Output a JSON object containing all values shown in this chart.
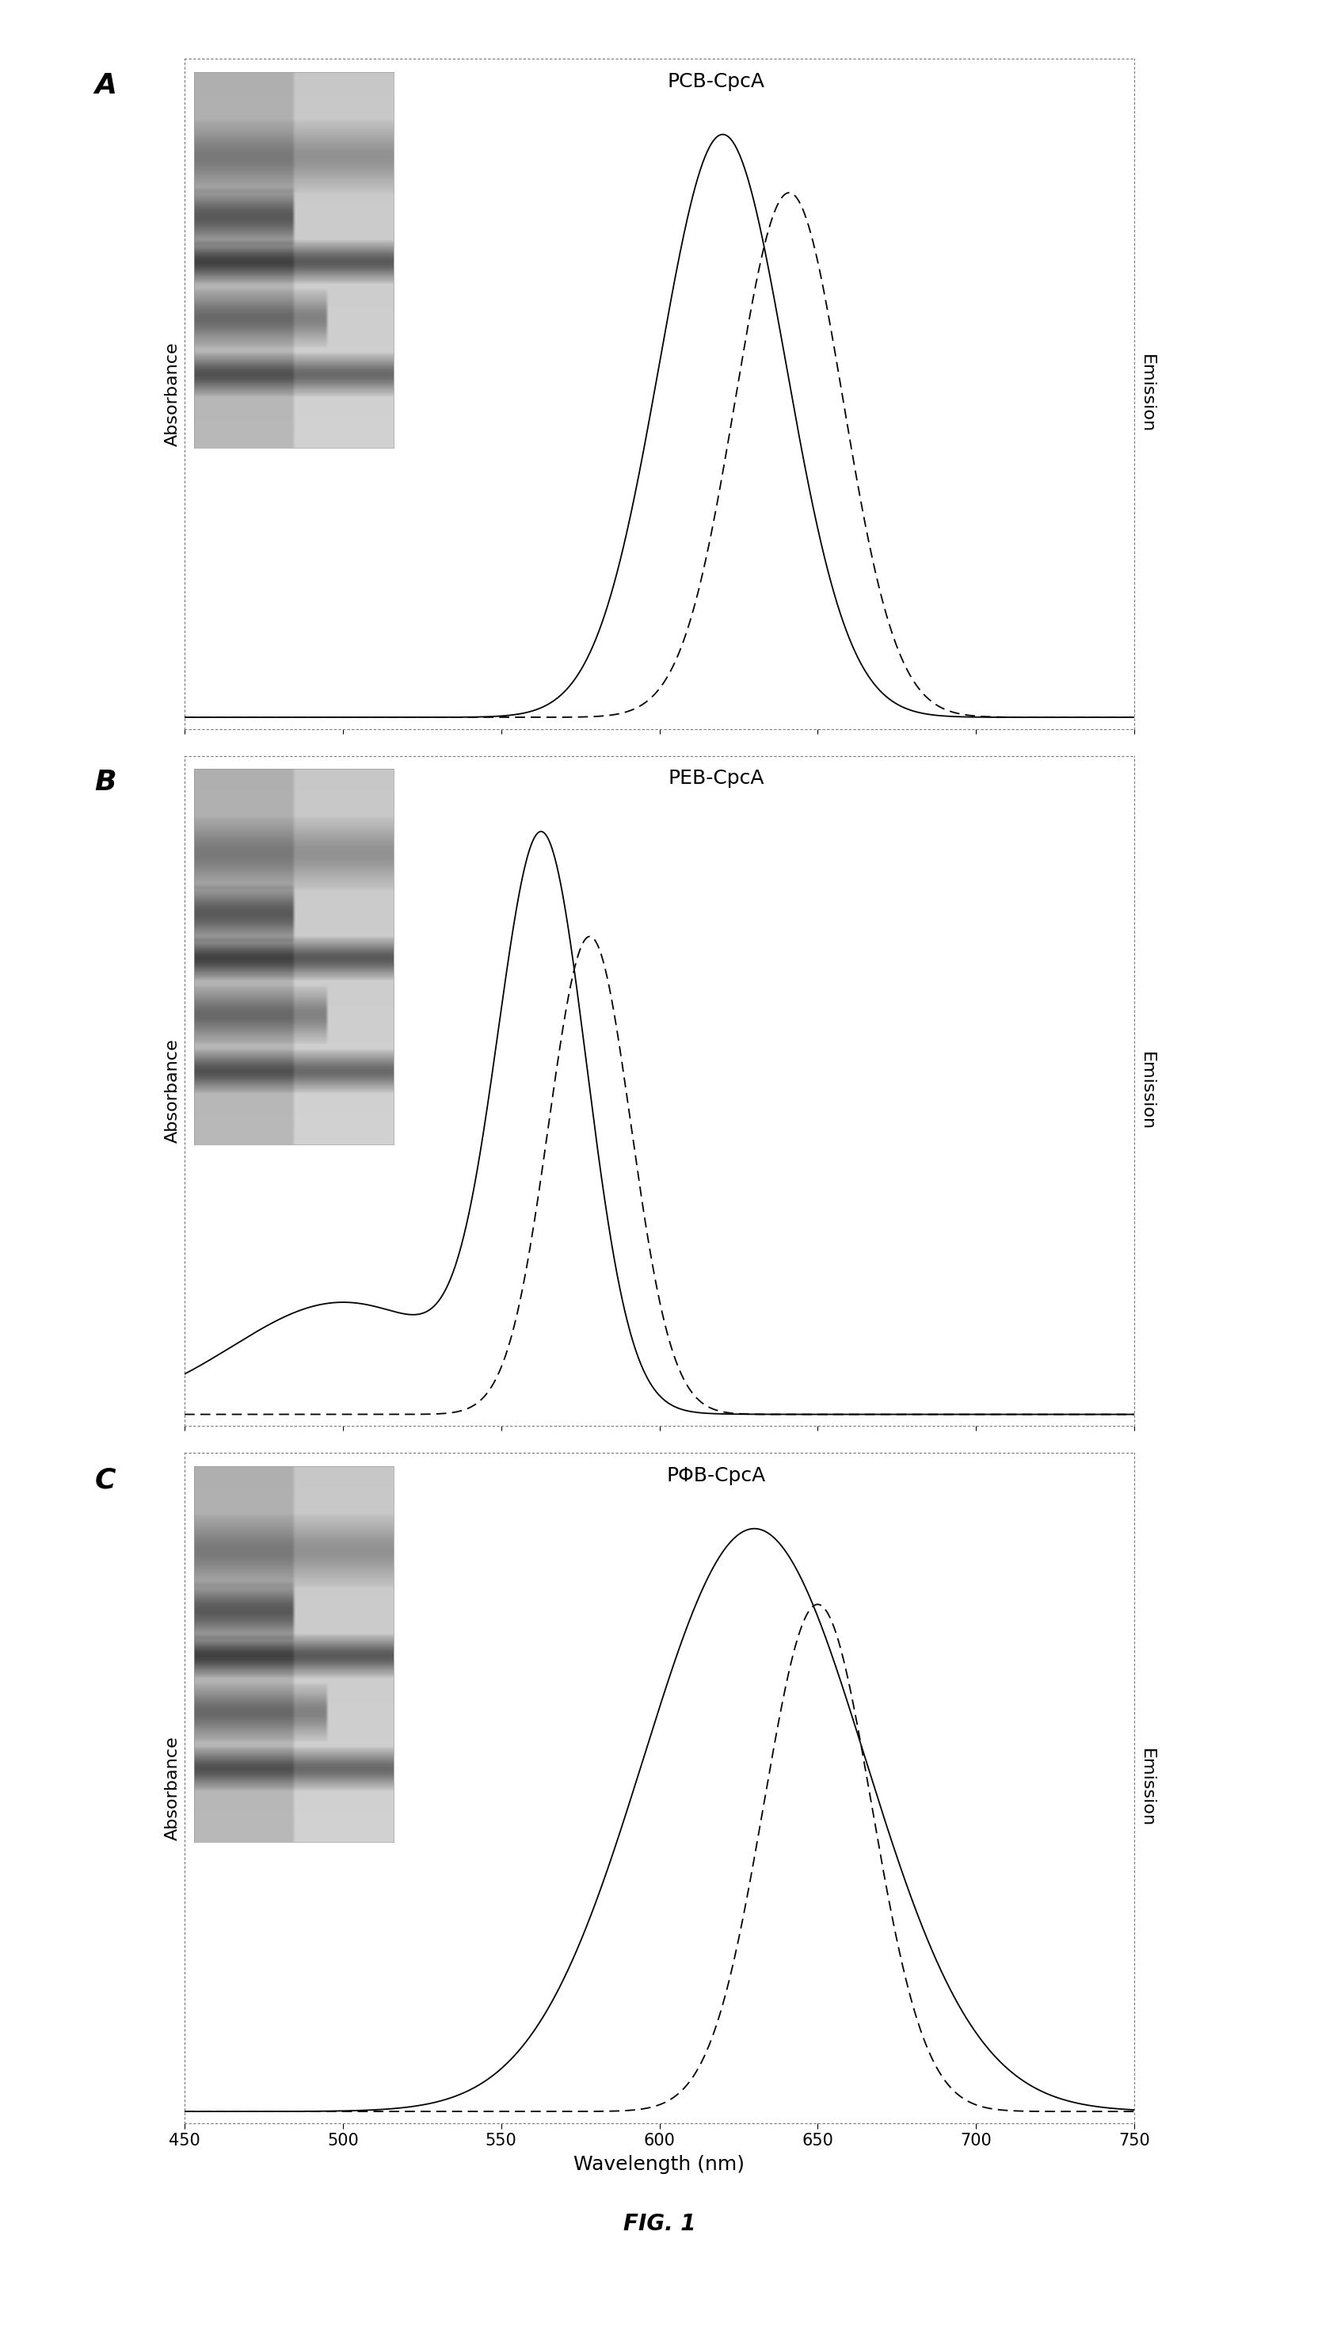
{
  "panels": [
    {
      "label": "A",
      "title": "PCB-CpcA",
      "abs_peak": 620,
      "abs_sigma": 20,
      "abs_extra": [],
      "em_peak": 641,
      "em_sigma": 17,
      "abs_amp": 1.0,
      "em_amp": 0.9
    },
    {
      "label": "B",
      "title": "PEB-CpcA",
      "abs_peak": 563,
      "abs_sigma": 14,
      "abs_extra": [
        {
          "peak": 500,
          "sigma": 35,
          "amp": 0.2
        }
      ],
      "em_peak": 578,
      "em_sigma": 13,
      "abs_amp": 1.0,
      "em_amp": 0.82
    },
    {
      "label": "C",
      "title": "PΦB-CpcA",
      "abs_peak": 630,
      "abs_sigma": 35,
      "abs_extra": [],
      "em_peak": 650,
      "em_sigma": 17,
      "abs_amp": 1.0,
      "em_amp": 0.87
    }
  ],
  "xmin": 450,
  "xmax": 750,
  "xticks": [
    450,
    500,
    550,
    600,
    650,
    700,
    750
  ],
  "xlabel": "Wavelength (nm)",
  "ylabel_left": "Absorbance",
  "ylabel_right": "Emission",
  "fig_label": "FIG. 1",
  "panel_label_fontsize": 26,
  "title_fontsize": 18,
  "axis_label_fontsize": 16,
  "tick_fontsize": 15
}
